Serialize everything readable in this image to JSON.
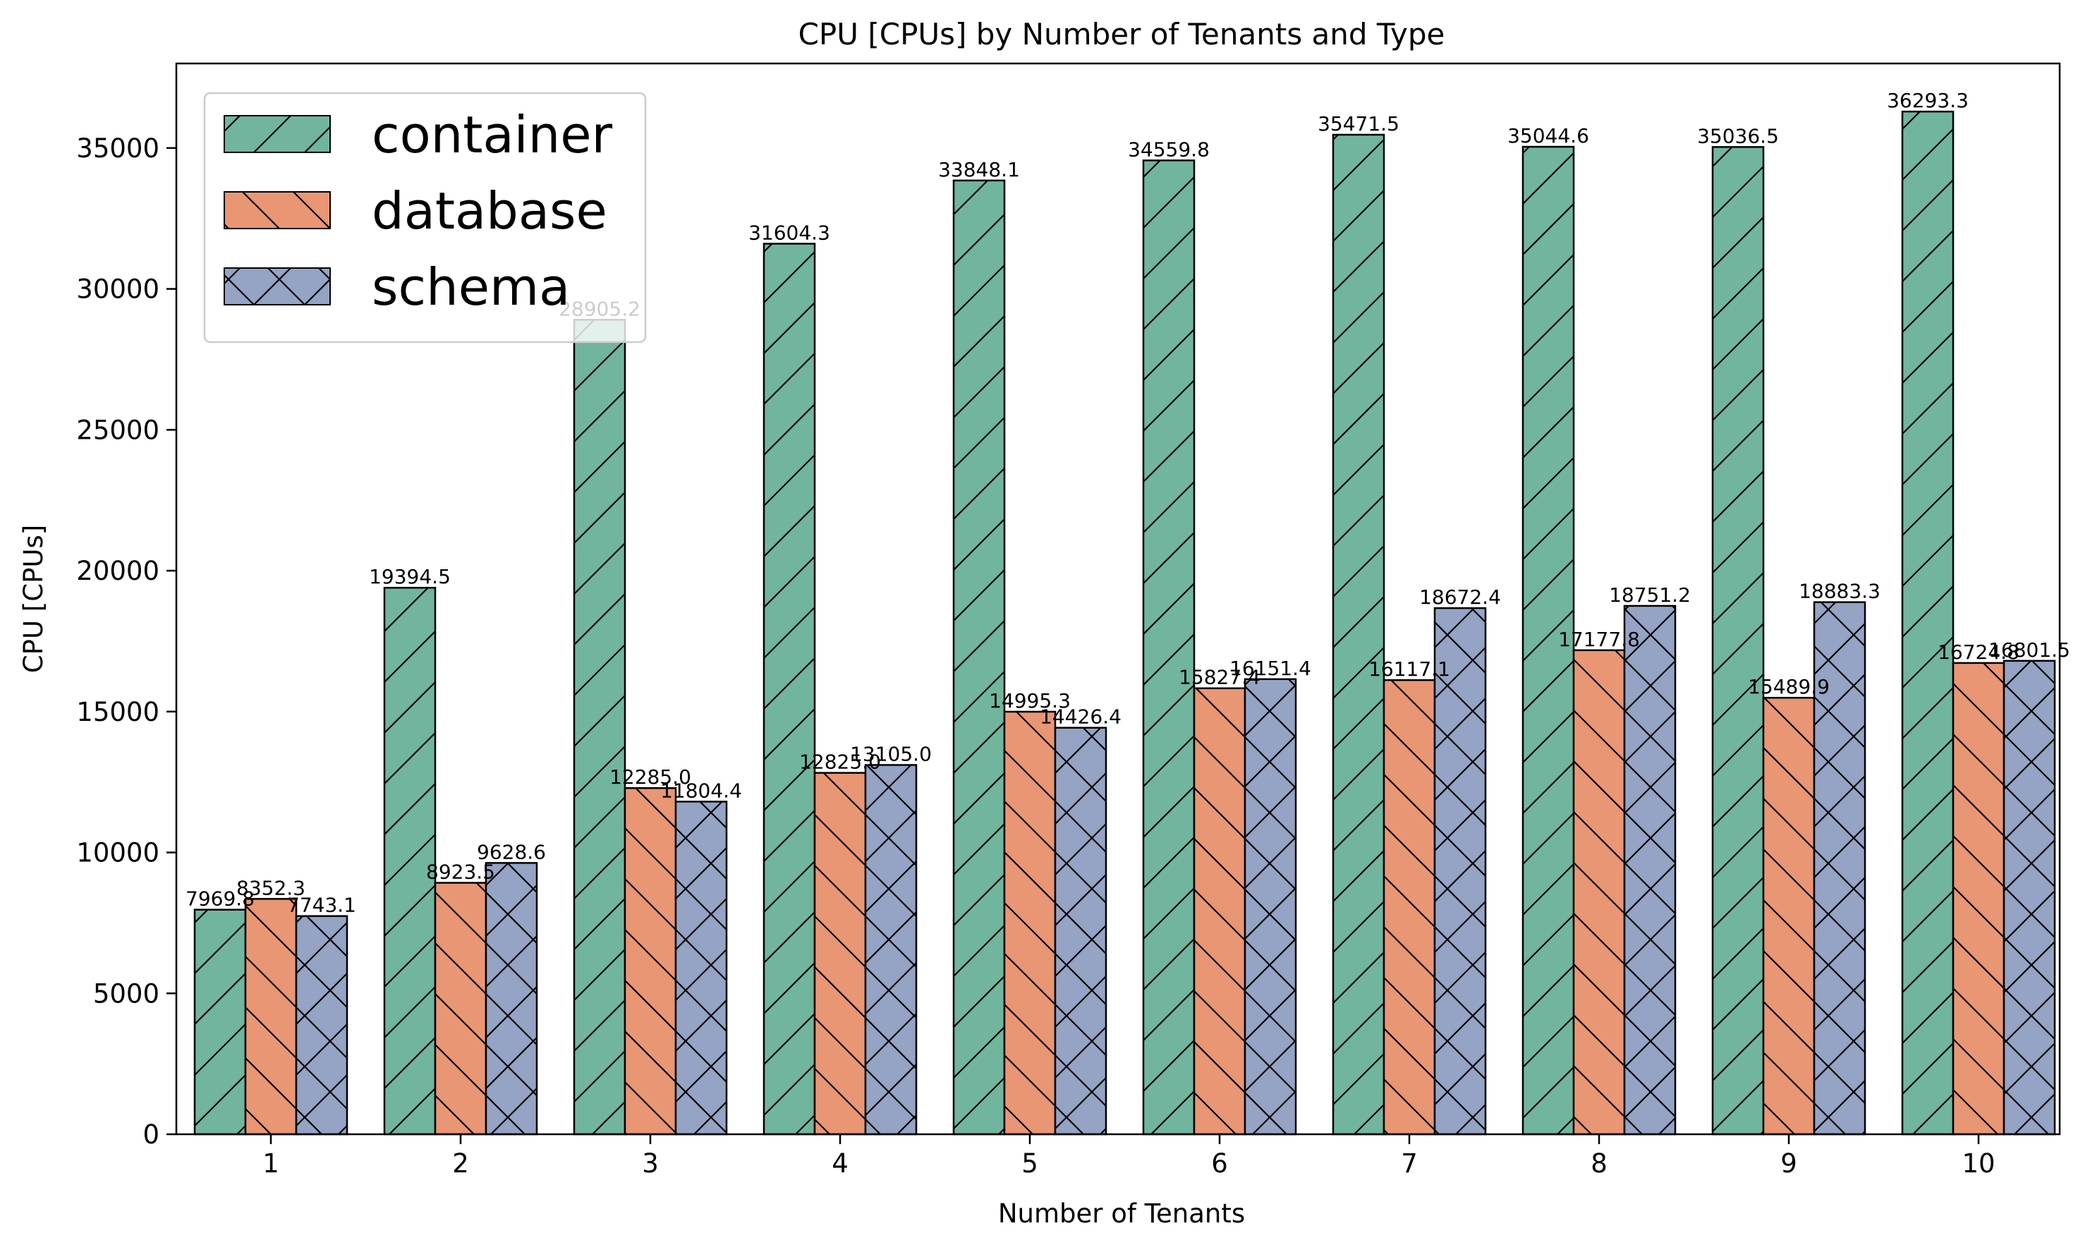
{
  "chart_data": {
    "type": "bar",
    "title": "CPU [CPUs] by Number of Tenants and Type",
    "xlabel": "Number of Tenants",
    "ylabel": "CPU [CPUs]",
    "categories": [
      "1",
      "2",
      "3",
      "4",
      "5",
      "6",
      "7",
      "8",
      "9",
      "10"
    ],
    "ylim": [
      0,
      38000
    ],
    "yticks": [
      0,
      5000,
      10000,
      15000,
      20000,
      25000,
      30000,
      35000
    ],
    "legend_position": "top-left",
    "grid": false,
    "series": [
      {
        "name": "container",
        "color": "#72b59e",
        "hatch": "forward-slash",
        "values": [
          7969.8,
          19394.5,
          28905.2,
          31604.3,
          33848.1,
          34559.8,
          35471.5,
          35044.6,
          35036.5,
          36293.3
        ],
        "labels": [
          "7969.8",
          "19394.5",
          "28905.2",
          "31604.3",
          "33848.1",
          "34559.8",
          "35471.5",
          "35044.6",
          "35036.5",
          "36293.3"
        ]
      },
      {
        "name": "database",
        "color": "#e99675",
        "hatch": "back-slash",
        "values": [
          8352.3,
          8923.5,
          12285.0,
          12825.0,
          14995.3,
          15827.4,
          16117.1,
          17177.8,
          15489.9,
          16724.8
        ],
        "labels": [
          "8352.3",
          "8923.5",
          "12285.0",
          "12825.0",
          "14995.3",
          "15827.4",
          "16117.1",
          "17177.8",
          "15489.9",
          "16724.8"
        ]
      },
      {
        "name": "schema",
        "color": "#95a3c4",
        "hatch": "cross",
        "values": [
          7743.1,
          9628.6,
          11804.4,
          13105.0,
          14426.4,
          16151.4,
          18672.4,
          18751.2,
          18883.3,
          16801.5
        ],
        "labels": [
          "7743.1",
          "9628.6",
          "11804.4",
          "13105.0",
          "14426.4",
          "16151.4",
          "18672.4",
          "18751.2",
          "18883.3",
          "16801.5"
        ]
      }
    ]
  }
}
